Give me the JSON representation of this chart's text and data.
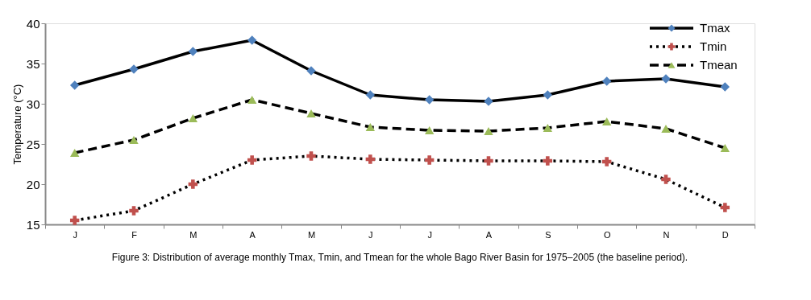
{
  "chart_data": {
    "type": "line",
    "categories": [
      "J",
      "F",
      "M",
      "A",
      "M",
      "J",
      "J",
      "A",
      "S",
      "O",
      "N",
      "D"
    ],
    "ylabel": "Temperature (°C)",
    "ylim": [
      15,
      40
    ],
    "yticks": [
      15,
      20,
      25,
      30,
      35,
      40
    ],
    "grid": false,
    "legend": "top right",
    "annotations": [
      "Figure 3: Distribution of average monthly Tmax, Tmin, and Tmean for the whole Bago River Basin for 1975–2005 (the baseline period)."
    ],
    "series": [
      {
        "name": "Tmax",
        "color": "#4f81bd",
        "marker": "diamond",
        "line_style": "solid",
        "values": [
          32.3,
          34.3,
          36.5,
          37.9,
          34.1,
          31.1,
          30.5,
          30.3,
          31.1,
          32.8,
          33.1,
          32.1
        ]
      },
      {
        "name": "Tmin",
        "color": "#c0504d",
        "marker": "cross",
        "line_style": "dotted",
        "values": [
          15.5,
          16.7,
          20.0,
          23.0,
          23.5,
          23.1,
          23.0,
          22.9,
          22.9,
          22.8,
          20.6,
          17.1
        ]
      },
      {
        "name": "Tmean",
        "color": "#9bbb59",
        "marker": "triangle",
        "line_style": "dashed",
        "values": [
          23.9,
          25.5,
          28.2,
          30.5,
          28.8,
          27.1,
          26.7,
          26.6,
          27.0,
          27.8,
          26.9,
          24.5
        ]
      }
    ]
  }
}
